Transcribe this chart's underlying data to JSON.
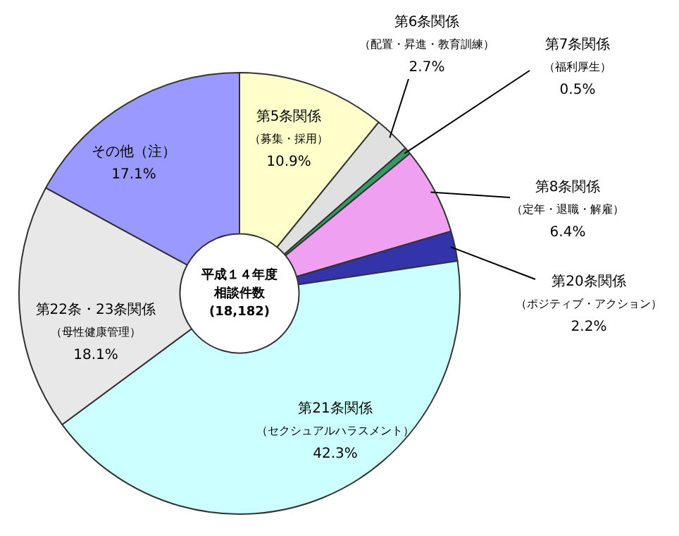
{
  "chart_data": {
    "type": "donut",
    "categories": [
      "第5条関係（募集・採用）",
      "第6条関係（配置・昇進・教育訓練）",
      "第7条関係（福利厚生）",
      "第8条関係（定年・退職・解雇）",
      "第20条関係（ポジティブ・アクション）",
      "第21条関係（セクシュアルハラスメント）",
      "第22条・23条関係（母性健康管理）",
      "その他（注）"
    ],
    "values": [
      10.9,
      2.7,
      0.5,
      6.4,
      2.2,
      42.3,
      18.1,
      17.1
    ],
    "value_labels": [
      "10.9%",
      "2.7%",
      "0.5%",
      "6.4%",
      "2.2%",
      "42.3%",
      "18.1%",
      "17.1%"
    ],
    "colors": [
      "#ffffcc",
      "#e0e0e0",
      "#339966",
      "#f0a0f0",
      "#3333aa",
      "#ccffff",
      "#e8e8e8",
      "#9999ff"
    ],
    "annotations": [
      "平成１４年度",
      "相談件数",
      "(18,182)"
    ],
    "legend": false
  }
}
